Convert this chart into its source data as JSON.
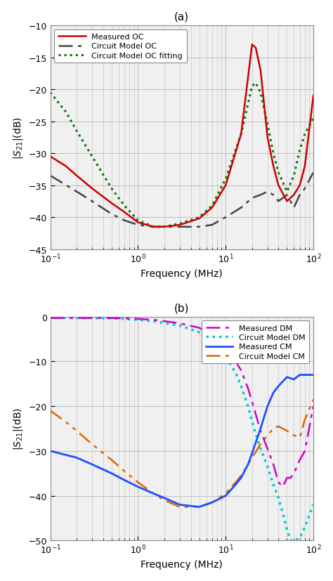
{
  "fig_width": 4.74,
  "fig_height": 8.28,
  "dpi": 100,
  "subplot_a": {
    "title": "(a)",
    "xlabel": "Frequency (MHz)",
    "ylabel": "|S_21|(dB)",
    "xlim": [
      0.1,
      100
    ],
    "ylim": [
      -45,
      -10
    ],
    "yticks": [
      -45,
      -40,
      -35,
      -30,
      -25,
      -20,
      -15,
      -10
    ],
    "legend_loc": "upper left",
    "lines": {
      "measured_oc": {
        "label": "Measured OC",
        "color": "#cc0000",
        "linestyle": "solid",
        "linewidth": 1.8,
        "freq": [
          0.1,
          0.15,
          0.2,
          0.3,
          0.5,
          0.7,
          1.0,
          1.5,
          2.0,
          3.0,
          5.0,
          7.0,
          10.0,
          15.0,
          20.0,
          22.0,
          25.0,
          30.0,
          35.0,
          40.0,
          50.0,
          60.0,
          70.0,
          80.0,
          100.0
        ],
        "vals": [
          -30.5,
          -32.0,
          -33.5,
          -35.5,
          -37.8,
          -39.2,
          -40.8,
          -41.5,
          -41.5,
          -41.2,
          -40.2,
          -38.5,
          -35.0,
          -27.0,
          -13.0,
          -13.5,
          -17.0,
          -27.5,
          -32.0,
          -35.0,
          -37.5,
          -36.5,
          -35.0,
          -32.0,
          -21.0
        ]
      },
      "circuit_oc": {
        "label": "Circuit Model OC",
        "color": "#444444",
        "linewidth": 1.8,
        "dash_pattern": [
          8,
          3,
          2,
          3
        ],
        "freq": [
          0.1,
          0.2,
          0.3,
          0.5,
          0.7,
          1.0,
          1.5,
          2.0,
          3.0,
          5.0,
          7.0,
          10.0,
          15.0,
          20.0,
          25.0,
          30.0,
          35.0,
          40.0,
          50.0,
          60.0,
          70.0,
          80.0,
          100.0
        ],
        "vals": [
          -33.5,
          -36.0,
          -37.5,
          -39.5,
          -40.5,
          -41.2,
          -41.5,
          -41.5,
          -41.5,
          -41.5,
          -41.2,
          -40.0,
          -38.5,
          -37.0,
          -36.5,
          -36.0,
          -36.5,
          -37.5,
          -36.5,
          -38.5,
          -36.5,
          -35.5,
          -33.0
        ]
      },
      "circuit_oc_fit": {
        "label": "Circuit Model OC fitting",
        "color": "#007700",
        "linewidth": 2.2,
        "linestyle": "dotted",
        "freq": [
          0.1,
          0.15,
          0.2,
          0.3,
          0.5,
          0.7,
          1.0,
          1.5,
          2.0,
          3.0,
          5.0,
          7.0,
          10.0,
          15.0,
          20.0,
          22.0,
          25.0,
          30.0,
          35.0,
          40.0,
          50.0,
          60.0,
          70.0,
          80.0,
          100.0
        ],
        "vals": [
          -20.5,
          -23.5,
          -26.5,
          -30.5,
          -35.5,
          -38.2,
          -40.5,
          -41.5,
          -41.5,
          -41.0,
          -40.0,
          -38.2,
          -34.0,
          -27.0,
          -19.5,
          -19.0,
          -20.5,
          -25.5,
          -30.0,
          -33.0,
          -36.0,
          -33.5,
          -29.5,
          -27.0,
          -24.5
        ]
      }
    }
  },
  "subplot_b": {
    "title": "(b)",
    "xlabel": "Frequency (MHz)",
    "ylabel": "|S_21|(dB)",
    "xlim": [
      0.1,
      100
    ],
    "ylim": [
      -50,
      0
    ],
    "yticks": [
      -50,
      -40,
      -30,
      -20,
      -10,
      0
    ],
    "legend_loc": "upper right",
    "lines": {
      "measured_dm": {
        "label": "Measured DM",
        "color": "#cc00cc",
        "linewidth": 1.8,
        "dash_pattern": [
          8,
          3,
          2,
          3
        ],
        "freq": [
          0.1,
          0.2,
          0.3,
          0.5,
          0.7,
          1.0,
          1.5,
          2.0,
          3.0,
          5.0,
          7.0,
          10.0,
          13.0,
          15.0,
          18.0,
          20.0,
          25.0,
          30.0,
          35.0,
          40.0,
          45.0,
          50.0,
          55.0,
          60.0,
          70.0,
          80.0,
          100.0
        ],
        "vals": [
          -0.3,
          -0.3,
          -0.3,
          -0.3,
          -0.4,
          -0.5,
          -0.7,
          -1.0,
          -1.5,
          -2.5,
          -4.0,
          -7.0,
          -10.0,
          -12.0,
          -16.0,
          -19.0,
          -25.5,
          -29.5,
          -33.0,
          -37.0,
          -38.0,
          -36.0,
          -36.0,
          -35.0,
          -32.0,
          -30.0,
          -20.0
        ]
      },
      "circuit_dm": {
        "label": "Circuit Model DM",
        "color": "#00cccc",
        "linestyle": "dotted",
        "linewidth": 2.5,
        "freq": [
          0.1,
          0.2,
          0.3,
          0.5,
          0.7,
          1.0,
          1.5,
          2.0,
          3.0,
          5.0,
          7.0,
          10.0,
          13.0,
          15.0,
          18.0,
          20.0,
          25.0,
          30.0,
          35.0,
          40.0,
          45.0,
          50.0,
          55.0,
          60.0,
          70.0,
          80.0,
          100.0
        ],
        "vals": [
          -0.2,
          -0.3,
          -0.3,
          -0.4,
          -0.5,
          -0.7,
          -1.0,
          -1.4,
          -2.0,
          -3.5,
          -5.5,
          -9.0,
          -12.5,
          -15.5,
          -20.0,
          -23.5,
          -29.5,
          -33.5,
          -37.5,
          -40.5,
          -44.0,
          -47.5,
          -50.0,
          -50.0,
          -49.5,
          -47.0,
          -42.0
        ]
      },
      "measured_cm": {
        "label": "Measured CM",
        "color": "#1f4fff",
        "linestyle": "solid",
        "linewidth": 2.0,
        "freq": [
          0.1,
          0.2,
          0.3,
          0.5,
          0.7,
          1.0,
          1.5,
          2.0,
          3.0,
          5.0,
          7.0,
          10.0,
          13.0,
          15.0,
          18.0,
          20.0,
          25.0,
          30.0,
          35.0,
          40.0,
          50.0,
          60.0,
          70.0,
          80.0,
          100.0
        ],
        "vals": [
          -30.0,
          -31.5,
          -33.0,
          -35.0,
          -36.5,
          -38.0,
          -39.5,
          -40.5,
          -42.0,
          -42.5,
          -41.5,
          -40.0,
          -37.5,
          -36.0,
          -33.0,
          -30.5,
          -25.0,
          -20.0,
          -17.0,
          -15.5,
          -13.5,
          -14.0,
          -13.0,
          -13.0,
          -13.0
        ]
      },
      "circuit_cm": {
        "label": "Circuit Model CM",
        "color": "#dd6600",
        "linewidth": 1.8,
        "dash_pattern": [
          8,
          3,
          2,
          3,
          2,
          3
        ],
        "freq": [
          0.1,
          0.15,
          0.2,
          0.3,
          0.5,
          0.7,
          1.0,
          1.5,
          2.0,
          3.0,
          5.0,
          7.0,
          10.0,
          13.0,
          15.0,
          18.0,
          20.0,
          25.0,
          30.0,
          35.0,
          40.0,
          50.0,
          60.0,
          70.0,
          80.0,
          100.0
        ],
        "vals": [
          -21.0,
          -23.5,
          -25.5,
          -28.5,
          -32.0,
          -34.5,
          -37.0,
          -39.5,
          -41.0,
          -42.5,
          -42.5,
          -41.5,
          -39.5,
          -37.0,
          -35.5,
          -33.0,
          -31.5,
          -28.5,
          -26.5,
          -25.0,
          -24.5,
          -25.5,
          -26.5,
          -27.0,
          -23.0,
          -18.5
        ]
      }
    }
  },
  "grid_color": "#b0b0b0",
  "grid_alpha": 0.8,
  "bg_color": "#f0f0f0"
}
